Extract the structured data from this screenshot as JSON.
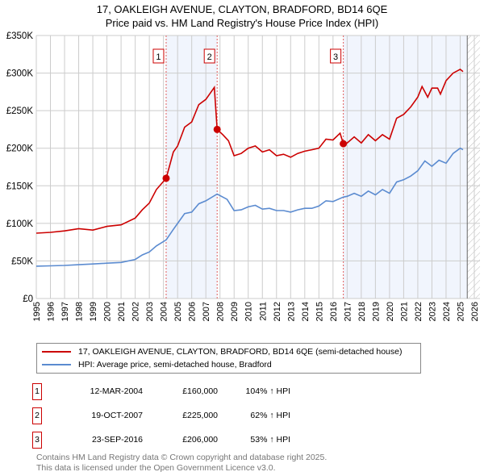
{
  "chart_data": {
    "type": "line",
    "title": "17, OAKLEIGH AVENUE, CLAYTON, BRADFORD, BD14 6QE",
    "subtitle": "Price paid vs. HM Land Registry's House Price Index (HPI)",
    "xlim": [
      1995,
      2026.4
    ],
    "ylim": [
      0,
      350000
    ],
    "y_ticks": [
      0,
      50000,
      100000,
      150000,
      200000,
      250000,
      300000,
      350000
    ],
    "y_tick_labels": [
      "£0",
      "£50K",
      "£100K",
      "£150K",
      "£200K",
      "£250K",
      "£300K",
      "£350K"
    ],
    "x_ticks": [
      1995,
      1996,
      1997,
      1998,
      1999,
      2000,
      2001,
      2002,
      2003,
      2004,
      2005,
      2006,
      2007,
      2008,
      2009,
      2010,
      2011,
      2012,
      2013,
      2014,
      2015,
      2016,
      2017,
      2018,
      2019,
      2020,
      2021,
      2022,
      2023,
      2024,
      2025,
      2026
    ],
    "grid": true,
    "forecast_start": 2025.5,
    "series": [
      {
        "name": "17, OAKLEIGH AVENUE, CLAYTON, BRADFORD, BD14 6QE (semi-detached house)",
        "color": "#cc0000",
        "x": [
          1995,
          1996,
          1997,
          1998,
          1999,
          2000,
          2001,
          2002,
          2002.5,
          2003,
          2003.5,
          2004.19,
          2004.7,
          2005,
          2005.5,
          2006,
          2006.5,
          2007,
          2007.6,
          2007.8,
          2008.2,
          2008.6,
          2009,
          2009.5,
          2010,
          2010.5,
          2011,
          2011.5,
          2012,
          2012.5,
          2013,
          2013.5,
          2014,
          2014.5,
          2015,
          2015.5,
          2016,
          2016.5,
          2016.73,
          2017,
          2017.5,
          2018,
          2018.5,
          2019,
          2019.5,
          2020,
          2020.5,
          2021,
          2021.5,
          2022,
          2022.3,
          2022.7,
          2023,
          2023.4,
          2023.6,
          2024,
          2024.5,
          2025,
          2025.2
        ],
        "y": [
          87000,
          88000,
          90000,
          93000,
          91000,
          96000,
          98000,
          107000,
          118000,
          127000,
          145000,
          160000,
          195000,
          203000,
          228000,
          235000,
          258000,
          265000,
          281000,
          225000,
          218000,
          210000,
          190000,
          193000,
          200000,
          203000,
          195000,
          198000,
          190000,
          192000,
          188000,
          193000,
          196000,
          198000,
          200000,
          212000,
          211000,
          220000,
          206000,
          207000,
          215000,
          207000,
          218000,
          210000,
          218000,
          212000,
          240000,
          245000,
          255000,
          268000,
          282000,
          268000,
          280000,
          280000,
          272000,
          290000,
          300000,
          305000,
          302000
        ]
      },
      {
        "name": "HPI: Average price, semi-detached house, Bradford",
        "color": "#5b8bd0",
        "x": [
          1995,
          1996,
          1997,
          1998,
          1999,
          2000,
          2001,
          2002,
          2002.5,
          2003,
          2003.5,
          2004.19,
          2004.7,
          2005,
          2005.5,
          2006,
          2006.5,
          2007,
          2007.8,
          2008.5,
          2009,
          2009.5,
          2010,
          2010.5,
          2011,
          2011.5,
          2012,
          2012.5,
          2013,
          2013.5,
          2014,
          2014.5,
          2015,
          2015.5,
          2016,
          2016.73,
          2017,
          2017.5,
          2018,
          2018.5,
          2019,
          2019.5,
          2020,
          2020.5,
          2021,
          2021.5,
          2022,
          2022.5,
          2023,
          2023.5,
          2024,
          2024.5,
          2025,
          2025.2
        ],
        "y": [
          43000,
          43500,
          44000,
          45000,
          46000,
          47000,
          48000,
          52000,
          58000,
          62000,
          70000,
          78000,
          92000,
          100000,
          113000,
          115000,
          126000,
          130000,
          139000,
          132000,
          117000,
          118000,
          122000,
          124000,
          119000,
          120000,
          117000,
          117000,
          115000,
          118000,
          120000,
          120000,
          123000,
          130000,
          129000,
          135000,
          136000,
          140000,
          136000,
          143000,
          138000,
          145000,
          140000,
          155000,
          158000,
          163000,
          170000,
          183000,
          176000,
          184000,
          180000,
          193000,
          200000,
          198000
        ]
      }
    ],
    "sales": [
      {
        "num": "1",
        "x": 2004.19,
        "date": "12-MAR-2004",
        "price": "£160,000",
        "price_value": 160000,
        "hpi": "104% ↑ HPI"
      },
      {
        "num": "2",
        "x": 2007.8,
        "date": "19-OCT-2007",
        "price": "£225,000",
        "price_value": 225000,
        "hpi": "62% ↑ HPI"
      },
      {
        "num": "3",
        "x": 2016.73,
        "date": "23-SEP-2016",
        "price": "£206,000",
        "price_value": 206000,
        "hpi": "53% ↑ HPI"
      }
    ]
  },
  "footer": {
    "line1": "Contains HM Land Registry data © Crown copyright and database right 2025.",
    "line2": "This data is licensed under the Open Government Licence v3.0."
  }
}
